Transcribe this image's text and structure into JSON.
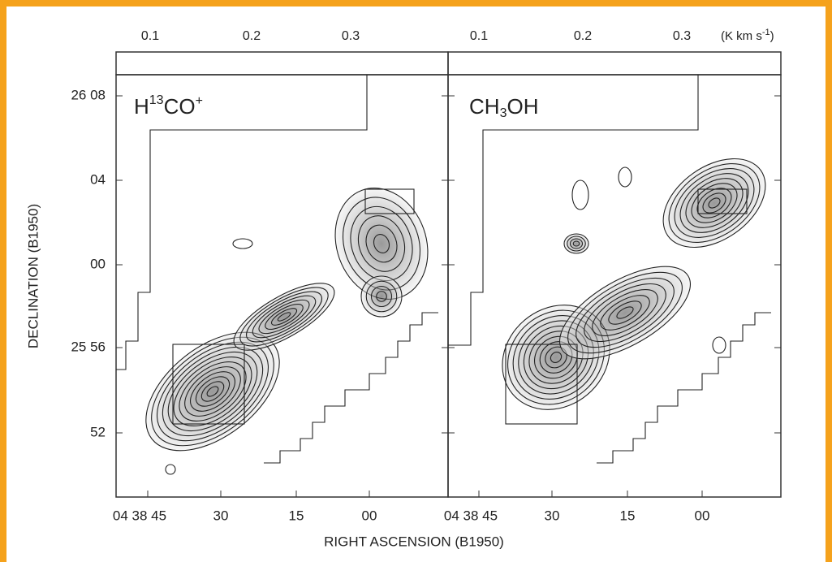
{
  "colorbar_left": {
    "ticks": [
      "0.1",
      "0.2",
      "0.3"
    ]
  },
  "colorbar_right": {
    "ticks": [
      "0.1",
      "0.2",
      "0.3"
    ],
    "unit": [
      "(K km s",
      "-1",
      ")"
    ]
  },
  "panels": [
    {
      "label": [
        "H",
        "13",
        "CO",
        "+"
      ],
      "x_ticks": [
        "04 38 45",
        "30",
        "15",
        "00"
      ]
    },
    {
      "label": [
        "CH",
        "3",
        "OH"
      ],
      "x_ticks": [
        "04 38 45",
        "30",
        "15",
        "00"
      ]
    }
  ],
  "y_axis": {
    "title": "DECLINATION (B1950)",
    "ticks": [
      "26 08",
      "04",
      "00",
      "25 56",
      "52"
    ]
  },
  "x_axis": {
    "title": "RIGHT ASCENSION (B1950)"
  }
}
